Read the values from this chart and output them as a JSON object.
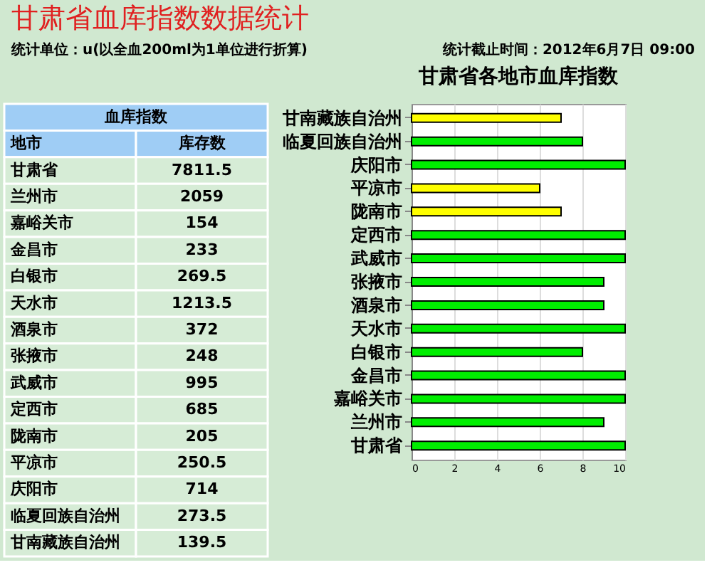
{
  "chart_data": [
    {
      "type": "other",
      "title": "甘肃省血库指数数据统计",
      "annotations": [
        "统计单位：u(以全血200ml为1单位进行折算)",
        "统计截止时间：2012年6月7日 09:00"
      ]
    },
    {
      "type": "other",
      "title": "血库指数",
      "annotations": [
        "地市",
        "库存数"
      ],
      "categories": [
        "甘肃省",
        "兰州市",
        "嘉峪关市",
        "金昌市",
        "白银市",
        "天水市",
        "酒泉市",
        "张掖市",
        "武威市",
        "定西市",
        "陇南市",
        "平凉市",
        "庆阳市",
        "临夏回族自治州",
        "甘南藏族自治州"
      ],
      "values": [
        7811.5,
        2059,
        154,
        233,
        269.5,
        1213.5,
        372,
        248,
        995,
        685,
        205,
        250.5,
        714,
        273.5,
        139.5
      ],
      "data_labels": true
    },
    {
      "type": "bar",
      "title": "甘肃省各地市血库指数",
      "orientation": "horizontal",
      "categories": [
        "甘南藏族自治州",
        "临夏回族自治州",
        "庆阳市",
        "平凉市",
        "陇南市",
        "定西市",
        "武威市",
        "张掖市",
        "酒泉市",
        "天水市",
        "白银市",
        "金昌市",
        "嘉峪关市",
        "兰州市",
        "甘肃省"
      ],
      "values": [
        7,
        8,
        10,
        6,
        7,
        10,
        10,
        9,
        9,
        10,
        8,
        10,
        10,
        9,
        10
      ],
      "colors": [
        "#ffff00",
        "#00ee00",
        "#00ee00",
        "#ffff00",
        "#ffff00",
        "#00ee00",
        "#00ee00",
        "#00ee00",
        "#00ee00",
        "#00ee00",
        "#00ee00",
        "#00ee00",
        "#00ee00",
        "#00ee00",
        "#00ee00"
      ],
      "xlim": [
        0,
        10
      ],
      "xticks": [
        0,
        2,
        4,
        6,
        8,
        10
      ],
      "grid": "x"
    }
  ]
}
